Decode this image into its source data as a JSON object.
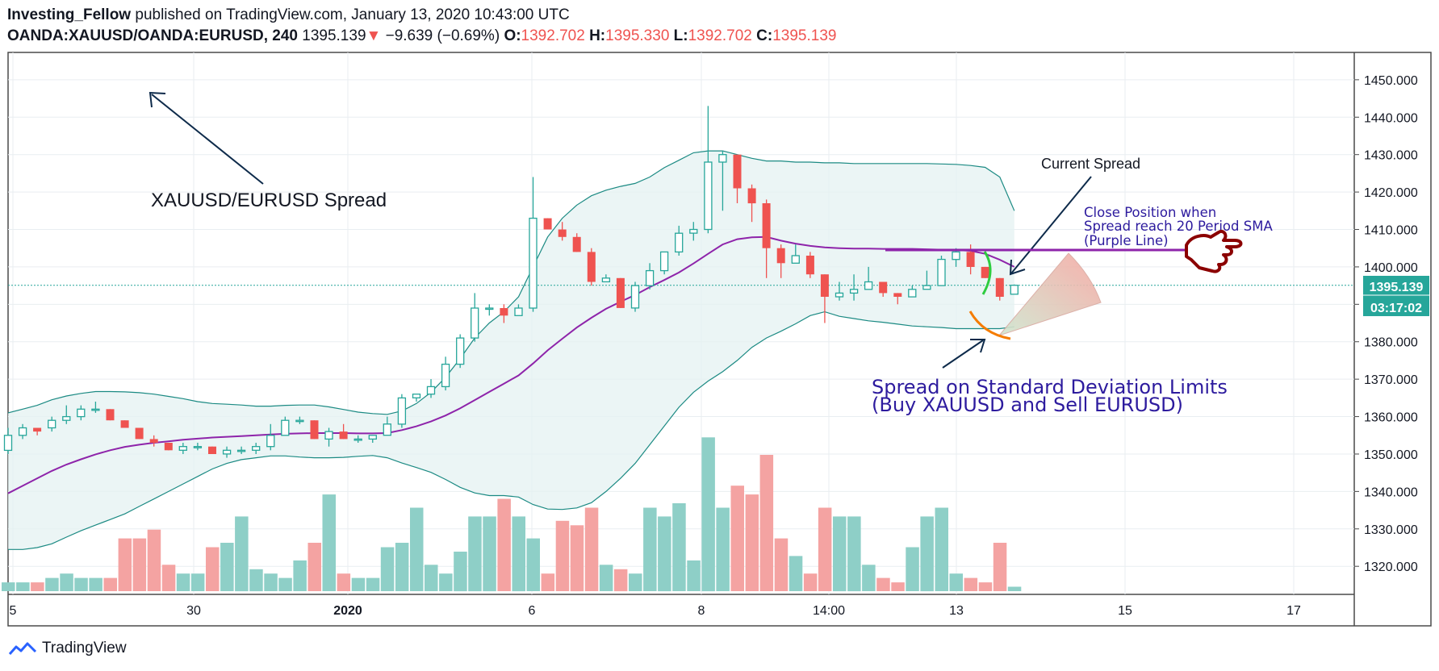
{
  "header": {
    "author": "Investing_Fellow",
    "published_text": "published on TradingView.com, January 13, 2020 10:43:00 UTC",
    "symbol": "OANDA:XAUUSD/OANDA:EURUSD, 240",
    "last_price": "1395.139",
    "change_arrow": "▼",
    "change": "−9.639 (−0.69%)",
    "open_label": "O:",
    "open": "1392.702",
    "high_label": "H:",
    "high": "1395.330",
    "low_label": "L:",
    "low": "1392.702",
    "close_label": "C:",
    "close": "1395.139"
  },
  "footer": {
    "brand": "TradingView"
  },
  "price_badge": {
    "price": "1395.139",
    "countdown": "03:17:02"
  },
  "annotations": {
    "spread_title": "XAUUSD/EURUSD Spread",
    "current_spread": "Current Spread",
    "close_position_1": "Close Position when",
    "close_position_2": "Spread reach 20 Period SMA",
    "close_position_3": "(Purple Line)",
    "std_dev_1": "Spread on Standard Deviation Limits",
    "std_dev_2": "(Buy XAUUSD and Sell EURUSD)"
  },
  "colors": {
    "up": "#26a69a",
    "down": "#ef5350",
    "volume_up": "#8ecfc7",
    "volume_down": "#f4a3a2",
    "sma": "#8e24aa",
    "band": "#1b8a83",
    "band_fill": "#e4f1f1",
    "annotation_purple": "#2d1b9e"
  },
  "chart_data": {
    "type": "candlestick",
    "y_axis": {
      "ticks": [
        1320,
        1330,
        1340,
        1350,
        1360,
        1370,
        1380,
        1390,
        1400,
        1410,
        1420,
        1430,
        1440,
        1450
      ],
      "range": [
        1312.5,
        1457.3
      ],
      "side": "right"
    },
    "x_axis": {
      "ticks": [
        "5",
        "30",
        "2020",
        "6",
        "8",
        "14:00",
        "13",
        "15",
        "17"
      ]
    },
    "grid": true,
    "candles": [
      [
        1351,
        1357,
        1350,
        1355
      ],
      [
        1355,
        1358,
        1354,
        1357
      ],
      [
        1357,
        1357,
        1355,
        1356
      ],
      [
        1357,
        1360,
        1356,
        1359
      ],
      [
        1359,
        1363,
        1358,
        1360
      ],
      [
        1360,
        1363,
        1359,
        1362
      ],
      [
        1362,
        1364,
        1361,
        1362
      ],
      [
        1362,
        1362,
        1359,
        1359
      ],
      [
        1359,
        1359,
        1357,
        1357
      ],
      [
        1357,
        1357,
        1354,
        1354
      ],
      [
        1354,
        1355,
        1352,
        1353
      ],
      [
        1353,
        1353,
        1351,
        1351
      ],
      [
        1351,
        1353,
        1350,
        1352
      ],
      [
        1352,
        1353,
        1351,
        1352
      ],
      [
        1352,
        1352,
        1350,
        1350
      ],
      [
        1350,
        1352,
        1349,
        1351
      ],
      [
        1351,
        1352,
        1350,
        1351
      ],
      [
        1351,
        1353,
        1350,
        1352
      ],
      [
        1352,
        1358,
        1351,
        1355
      ],
      [
        1355,
        1360,
        1355,
        1359
      ],
      [
        1359,
        1360,
        1358,
        1359
      ],
      [
        1359,
        1359,
        1354,
        1354
      ],
      [
        1354,
        1357,
        1352,
        1356
      ],
      [
        1356,
        1358,
        1354,
        1354
      ],
      [
        1354,
        1355,
        1353,
        1354
      ],
      [
        1354,
        1355,
        1353,
        1355
      ],
      [
        1355,
        1360,
        1355,
        1358
      ],
      [
        1358,
        1366,
        1357,
        1365
      ],
      [
        1365,
        1366,
        1364,
        1366
      ],
      [
        1366,
        1370,
        1365,
        1368
      ],
      [
        1368,
        1376,
        1367,
        1374
      ],
      [
        1374,
        1382,
        1373,
        1381
      ],
      [
        1381,
        1393,
        1380,
        1389
      ],
      [
        1389,
        1390,
        1387,
        1389
      ],
      [
        1389,
        1390,
        1385,
        1387
      ],
      [
        1387,
        1390,
        1387,
        1389
      ],
      [
        1389,
        1424,
        1388,
        1413
      ],
      [
        1413,
        1413,
        1410,
        1410
      ],
      [
        1410,
        1412,
        1407,
        1408
      ],
      [
        1408,
        1409,
        1404,
        1404
      ],
      [
        1404,
        1405,
        1395,
        1396
      ],
      [
        1396,
        1398,
        1396,
        1397
      ],
      [
        1397,
        1397,
        1389,
        1389
      ],
      [
        1389,
        1396,
        1388,
        1395
      ],
      [
        1395,
        1401,
        1394,
        1399
      ],
      [
        1399,
        1404,
        1398,
        1404
      ],
      [
        1404,
        1411,
        1403,
        1409
      ],
      [
        1409,
        1412,
        1407,
        1410
      ],
      [
        1410,
        1443,
        1409,
        1428
      ],
      [
        1428,
        1431,
        1415,
        1430
      ],
      [
        1430,
        1430,
        1417,
        1421
      ],
      [
        1421,
        1422,
        1412,
        1417
      ],
      [
        1417,
        1418,
        1397,
        1405
      ],
      [
        1405,
        1406,
        1397,
        1401
      ],
      [
        1401,
        1406,
        1401,
        1403
      ],
      [
        1403,
        1404,
        1397,
        1398
      ],
      [
        1398,
        1398,
        1385,
        1392
      ],
      [
        1392,
        1396,
        1391,
        1393
      ],
      [
        1393,
        1398,
        1391,
        1394
      ],
      [
        1394,
        1400,
        1394,
        1396
      ],
      [
        1396,
        1396,
        1392,
        1393
      ],
      [
        1393,
        1393,
        1390,
        1392
      ],
      [
        1392,
        1395,
        1392,
        1394
      ],
      [
        1394,
        1399,
        1394,
        1395
      ],
      [
        1395,
        1403,
        1395,
        1402
      ],
      [
        1402,
        1405,
        1400,
        1404
      ],
      [
        1404,
        1406,
        1398,
        1400
      ],
      [
        1400,
        1400,
        1397,
        1397
      ],
      [
        1397,
        1397,
        1391,
        1392
      ],
      [
        1392.7,
        1395.3,
        1392.7,
        1395.1
      ]
    ],
    "sma20": [
      1339.5,
      1341.5,
      1343.5,
      1345.5,
      1347.2,
      1348.6,
      1349.9,
      1351.0,
      1351.9,
      1352.5,
      1353.0,
      1353.4,
      1353.8,
      1354.1,
      1354.4,
      1354.6,
      1354.8,
      1355.0,
      1355.2,
      1355.4,
      1355.5,
      1355.6,
      1355.6,
      1355.6,
      1355.5,
      1355.5,
      1355.6,
      1356.4,
      1357.4,
      1358.7,
      1360.3,
      1362.2,
      1364.4,
      1366.6,
      1368.8,
      1371.0,
      1374.2,
      1377.7,
      1380.8,
      1383.8,
      1386.4,
      1388.8,
      1390.7,
      1392.5,
      1394.6,
      1396.5,
      1398.5,
      1400.9,
      1403.5,
      1406.0,
      1407.4,
      1407.9,
      1408.0,
      1407.0,
      1406.2,
      1405.6,
      1405.2,
      1405.0,
      1404.9,
      1404.9,
      1404.8,
      1404.8,
      1404.8,
      1404.7,
      1404.6,
      1404.5,
      1404.3,
      1403.5,
      1401.9,
      1400.0
    ],
    "upper_band": [
      1361,
      1362,
      1363,
      1364.5,
      1365.5,
      1366.2,
      1366.7,
      1366.7,
      1366.6,
      1366.4,
      1366.0,
      1365.4,
      1364.8,
      1364.0,
      1363.5,
      1363.3,
      1363.1,
      1362.8,
      1362.8,
      1363.0,
      1363.1,
      1363.1,
      1362.6,
      1361.9,
      1361.2,
      1360.8,
      1360.6,
      1361.5,
      1363.5,
      1366.5,
      1370.5,
      1375.5,
      1381.0,
      1385.0,
      1388.0,
      1392.0,
      1400.0,
      1408.0,
      1413.0,
      1416.5,
      1419.0,
      1420.5,
      1421.5,
      1422.3,
      1424.0,
      1426.5,
      1428.5,
      1430.5,
      1431.0,
      1431.0,
      1430.0,
      1429.0,
      1428.3,
      1428.3,
      1428.0,
      1428.0,
      1427.8,
      1427.8,
      1427.6,
      1427.6,
      1427.6,
      1427.6,
      1427.6,
      1427.6,
      1427.5,
      1427.4,
      1427.1,
      1426.6,
      1424.0,
      1415.0
    ],
    "lower_band": [
      1324.5,
      1324.5,
      1325.0,
      1326.0,
      1327.8,
      1329.5,
      1331.0,
      1332.5,
      1334.0,
      1336.0,
      1338.0,
      1340.0,
      1342.0,
      1344.0,
      1346.0,
      1347.5,
      1348.5,
      1349.0,
      1349.5,
      1349.5,
      1349.2,
      1349.0,
      1349.0,
      1349.1,
      1349.4,
      1349.6,
      1349.0,
      1347.6,
      1346.4,
      1345.1,
      1343.2,
      1341.1,
      1339.6,
      1338.9,
      1338.9,
      1338.5,
      1336.5,
      1335.3,
      1335.2,
      1335.6,
      1337.0,
      1340.0,
      1343.5,
      1347.5,
      1352.5,
      1357.5,
      1362.5,
      1366.5,
      1369.5,
      1372.0,
      1375.0,
      1378.5,
      1381.0,
      1382.8,
      1384.8,
      1387.0,
      1388.0,
      1386.8,
      1386.2,
      1385.6,
      1385.2,
      1384.7,
      1384.2,
      1384.0,
      1383.8,
      1383.5,
      1383.5,
      1383.5,
      1383.5,
      1384.0
    ],
    "volume": [
      2,
      2,
      2,
      3,
      4,
      3,
      3,
      3,
      12,
      12,
      14,
      6,
      4,
      4,
      10,
      11,
      17,
      5,
      4,
      3,
      7,
      11,
      22,
      4,
      3,
      3,
      10,
      11,
      19,
      6,
      4,
      9,
      17,
      17,
      21,
      17,
      12,
      4,
      16,
      15,
      19,
      6,
      5,
      4,
      19,
      17,
      20,
      7,
      35,
      19,
      24,
      22,
      31,
      12,
      8,
      4,
      19,
      17,
      17,
      6,
      3,
      2,
      10,
      17,
      19,
      4,
      3,
      2,
      11,
      1
    ]
  }
}
